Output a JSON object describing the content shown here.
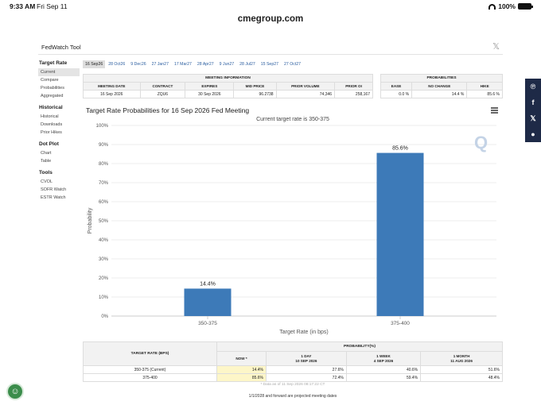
{
  "status_bar": {
    "time": "9:33 AM",
    "date": "Fri Sep 11",
    "battery": "100%"
  },
  "browser": {
    "url": "cmegroup.com"
  },
  "tool": {
    "title": "FedWatch Tool",
    "close_icon": "close-x-icon"
  },
  "sidebar": {
    "sections": [
      {
        "title": "Target Rate",
        "items": [
          "Current",
          "Compare",
          "Probabilities",
          "Aggregated"
        ]
      },
      {
        "title": "Historical",
        "items": [
          "Historical",
          "Downloads",
          "Prior Hikes"
        ]
      },
      {
        "title": "Dot Plot",
        "items": [
          "Chart",
          "Table"
        ]
      },
      {
        "title": "Tools",
        "items": [
          "CVOL",
          "SOFR Watch",
          "ESTR Watch"
        ]
      }
    ],
    "active_item": "Current"
  },
  "meeting_tabs": [
    "16 Sep26",
    "28 Oct26",
    "9 Dec26",
    "27 Jan27",
    "17 Mar27",
    "28 Apr27",
    "9 Jun27",
    "28 Jul27",
    "15 Sep27",
    "27 Oct27"
  ],
  "meeting_info": {
    "group_header": "MEETING INFORMATION",
    "headers": [
      "MEETING DATE",
      "CONTRACT",
      "EXPIRES",
      "MID PRICE",
      "PRIOR VOLUME",
      "PRIOR OI"
    ],
    "row": [
      "16 Sep 2026",
      "ZQU6",
      "30 Sep 2026",
      "96.2738",
      "74,346",
      "258,167"
    ]
  },
  "probabilities": {
    "group_header": "PROBABILITIES",
    "headers": [
      "EASE",
      "NO CHANGE",
      "HIKE"
    ],
    "row": [
      "0.0 %",
      "14.4 %",
      "85.6 %"
    ]
  },
  "chart": {
    "title": "Target Rate Probabilities for 16 Sep 2026 Fed Meeting",
    "subtitle": "Current target rate is 350-375",
    "menu_icon": "hamburger-menu-icon",
    "watermark": "Q"
  },
  "chart_data": {
    "type": "bar",
    "title": "Target Rate Probabilities for 16 Sep 2026 Fed Meeting",
    "subtitle": "Current target rate is 350-375",
    "categories": [
      "350-375",
      "375-400"
    ],
    "values": [
      14.4,
      85.6
    ],
    "data_labels": [
      "14.4%",
      "85.6%"
    ],
    "xlabel": "Target Rate (in bps)",
    "ylabel": "Probability",
    "ylim": [
      0,
      100
    ],
    "yticks": [
      "0%",
      "10%",
      "20%",
      "30%",
      "40%",
      "50%",
      "60%",
      "70%",
      "80%",
      "90%",
      "100%"
    ],
    "grid": true,
    "bar_color": "#3d7ab8"
  },
  "prob_table": {
    "target_header": "TARGET RATE (BPS)",
    "group_header": "PROBABILITY(%)",
    "columns": [
      {
        "l1": "NOW *",
        "l2": ""
      },
      {
        "l1": "1 DAY",
        "l2": "10 SEP 2026"
      },
      {
        "l1": "1 WEEK",
        "l2": "4 SEP 2026"
      },
      {
        "l1": "1 MONTH",
        "l2": "11 AUG 2026"
      }
    ],
    "rows": [
      {
        "rate": "350-375 (Current)",
        "now": "14.4%",
        "day": "27.6%",
        "week": "40.6%",
        "month": "51.6%"
      },
      {
        "rate": "375-400",
        "now": "85.6%",
        "day": "72.4%",
        "week": "59.4%",
        "month": "48.4%"
      }
    ],
    "note": "* Data as of 11 Sep 2026 08:17:22 CT"
  },
  "footnote": "1/1/2028 and forward are projected meeting dates",
  "share_icons": [
    "pinterest-icon",
    "facebook-icon",
    "x-icon",
    "reddit-icon"
  ],
  "colors": {
    "bar": "#3d7ab8",
    "share_bar": "#1e2a47",
    "now_highlight": "#fdf6c8"
  }
}
